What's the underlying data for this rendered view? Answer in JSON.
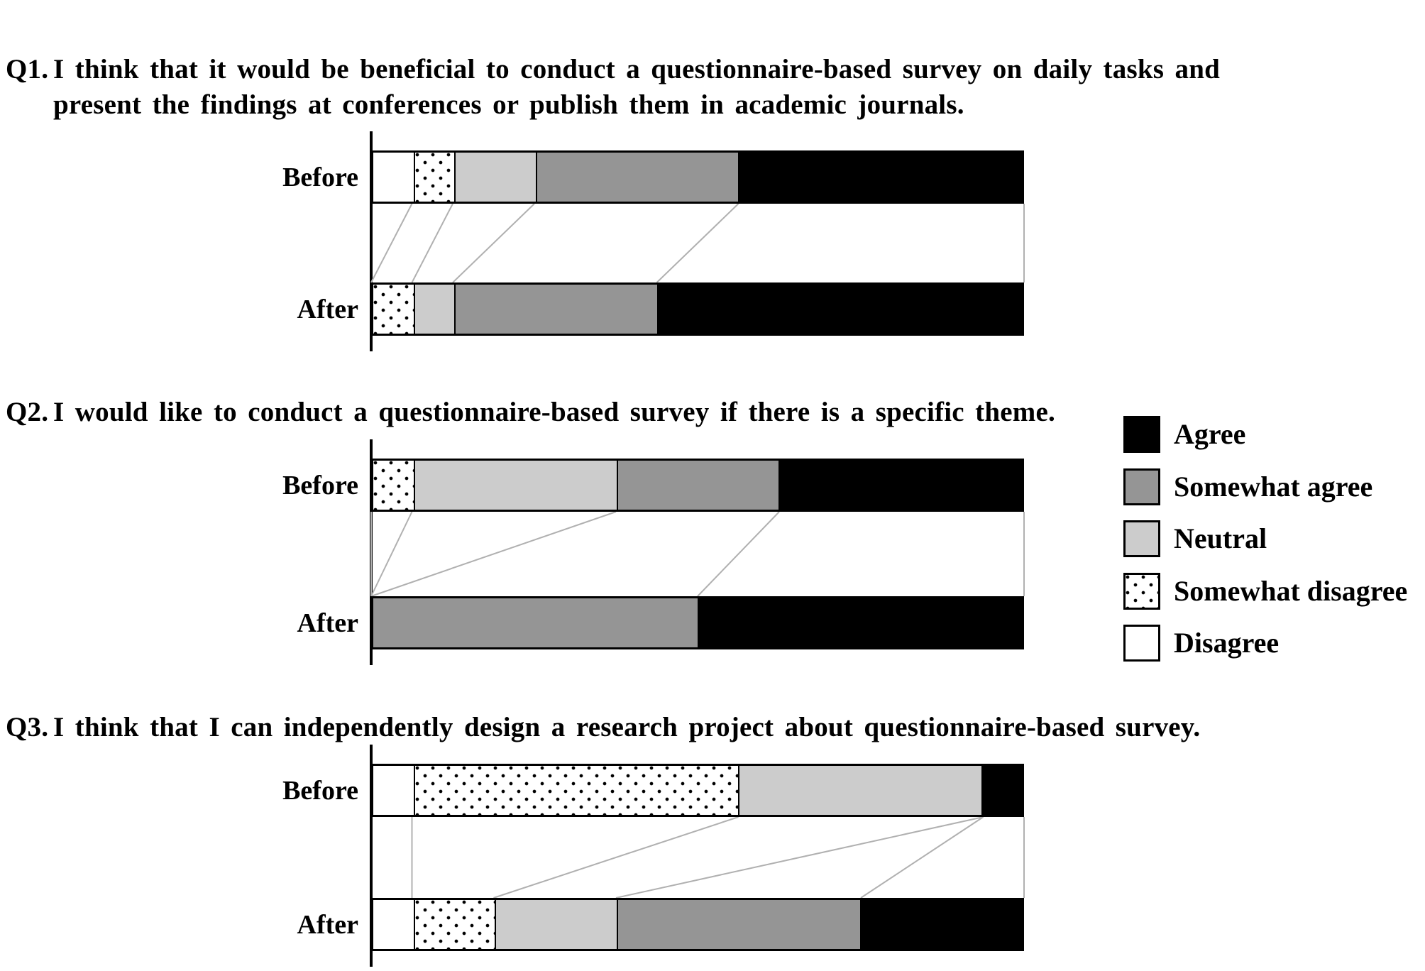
{
  "figure": {
    "background": "#ffffff",
    "axis_color": "#000000",
    "connector_line_color": "#b0b0b0"
  },
  "legend": {
    "position": "right",
    "items": [
      {
        "label": "Agree",
        "fill": "#000000",
        "pattern": "solid"
      },
      {
        "label": "Somewhat agree",
        "fill": "#959595",
        "pattern": "solid"
      },
      {
        "label": "Neutral",
        "fill": "#cccccc",
        "pattern": "solid"
      },
      {
        "label": "Somewhat disagree",
        "fill": "#ffffff",
        "pattern": "dots"
      },
      {
        "label": "Disagree",
        "fill": "#ffffff",
        "pattern": "solid"
      }
    ]
  },
  "category_styles": [
    {
      "category": "Disagree",
      "fill": "#ffffff",
      "pattern": "solid"
    },
    {
      "category": "Somewhat disagree",
      "fill": "#ffffff",
      "pattern": "dots"
    },
    {
      "category": "Neutral",
      "fill": "#cccccc",
      "pattern": "solid"
    },
    {
      "category": "Somewhat agree",
      "fill": "#959595",
      "pattern": "solid"
    },
    {
      "category": "Agree",
      "fill": "#000000",
      "pattern": "solid"
    }
  ],
  "chart_data": [
    {
      "type": "bar",
      "stacked": true,
      "orientation": "horizontal",
      "question_id": "Q1.",
      "title_lines": [
        "I think that it would be beneficial to conduct a questionnaire-based survey on daily tasks and",
        "present the findings at conferences or publish them in academic journals."
      ],
      "categories": [
        "Disagree",
        "Somewhat disagree",
        "Neutral",
        "Somewhat agree",
        "Agree"
      ],
      "xlim": [
        0,
        100
      ],
      "unit": "percent",
      "rows": [
        {
          "label": "Before",
          "values": [
            6.25,
            6.25,
            12.5,
            31.25,
            43.75
          ]
        },
        {
          "label": "After",
          "values": [
            0,
            6.25,
            6.25,
            31.25,
            56.25
          ]
        }
      ]
    },
    {
      "type": "bar",
      "stacked": true,
      "orientation": "horizontal",
      "question_id": "Q2.",
      "title_lines": [
        "I would like to conduct a questionnaire-based survey if there is a specific theme."
      ],
      "categories": [
        "Disagree",
        "Somewhat disagree",
        "Neutral",
        "Somewhat agree",
        "Agree"
      ],
      "xlim": [
        0,
        100
      ],
      "unit": "percent",
      "rows": [
        {
          "label": "Before",
          "values": [
            0,
            6.25,
            31.25,
            25,
            37.5
          ]
        },
        {
          "label": "After",
          "values": [
            0,
            0,
            0,
            50,
            50
          ]
        }
      ]
    },
    {
      "type": "bar",
      "stacked": true,
      "orientation": "horizontal",
      "question_id": "Q3.",
      "title_lines": [
        "I think that I can independently design a research project about questionnaire-based survey."
      ],
      "categories": [
        "Disagree",
        "Somewhat disagree",
        "Neutral",
        "Somewhat agree",
        "Agree"
      ],
      "xlim": [
        0,
        100
      ],
      "unit": "percent",
      "rows": [
        {
          "label": "Before",
          "values": [
            6.25,
            50,
            37.5,
            0,
            6.25
          ]
        },
        {
          "label": "After",
          "values": [
            6.25,
            12.5,
            18.75,
            37.5,
            25
          ]
        }
      ]
    }
  ]
}
